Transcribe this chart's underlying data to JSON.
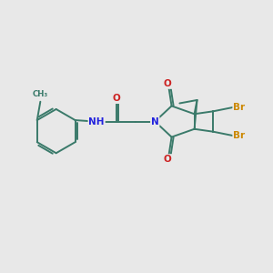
{
  "background_color": "#e8e8e8",
  "bond_color": "#3a7a6a",
  "bond_width": 1.4,
  "N_color": "#2222dd",
  "O_color": "#cc2222",
  "Br_color": "#cc8800",
  "C_color": "#3a7a6a",
  "font_size_atom": 7.5,
  "fig_size": [
    3.0,
    3.0
  ],
  "dpi": 100,
  "xlim": [
    0,
    10
  ],
  "ylim": [
    0,
    10
  ]
}
